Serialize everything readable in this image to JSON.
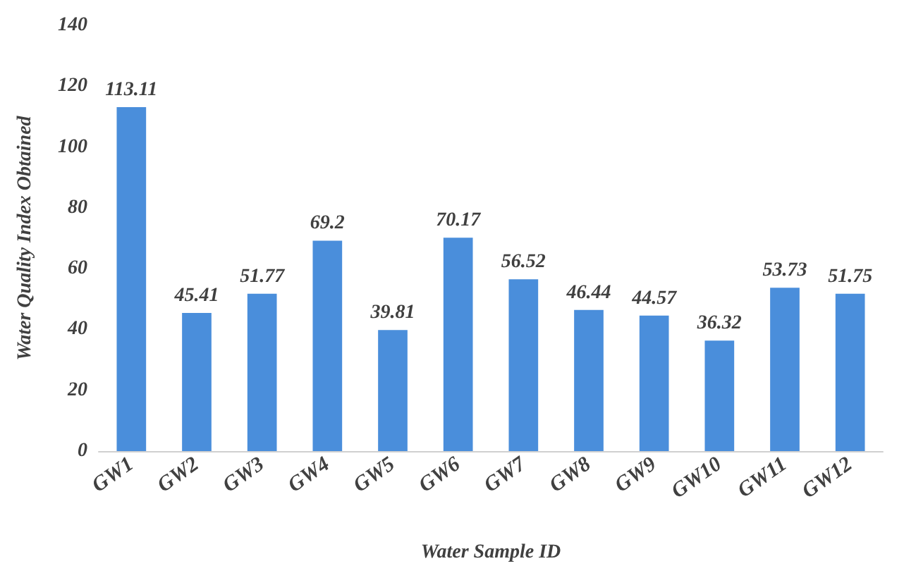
{
  "chart_data": {
    "type": "bar",
    "xlabel": "Water Sample ID",
    "ylabel": "Water Quality Index Obtained",
    "categories": [
      "GW1",
      "GW2",
      "GW3",
      "GW4",
      "GW5",
      "GW6",
      "GW7",
      "GW8",
      "GW9",
      "GW10",
      "GW11",
      "GW12"
    ],
    "values": [
      113.11,
      45.41,
      51.77,
      69.2,
      39.81,
      70.17,
      56.52,
      46.44,
      44.57,
      36.32,
      53.73,
      51.75
    ],
    "color": "#4a8edb",
    "ylim": [
      0,
      140
    ],
    "yticks": [
      0,
      20,
      40,
      60,
      80,
      100,
      120,
      140
    ],
    "grid": false,
    "data_labels": true
  }
}
